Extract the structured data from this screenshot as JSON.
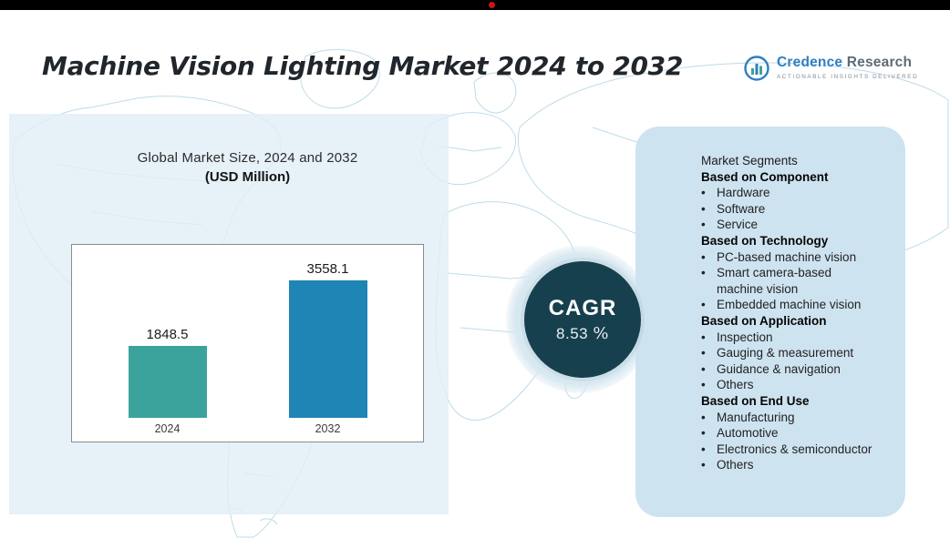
{
  "header": {
    "title": "Machine Vision Lighting Market 2024 to 2032",
    "logo": {
      "brand_first": "Credence",
      "brand_second": "Research",
      "tagline": "Actionable Insights Delivered"
    }
  },
  "chart_data": {
    "type": "bar",
    "title": "Global Market Size,  2024 and 2032",
    "subtitle": "(USD Million)",
    "categories": [
      "2024",
      "2032"
    ],
    "values": [
      1848.5,
      3558.1
    ],
    "value_labels": [
      "1848.5",
      "3558.1"
    ],
    "bar_colors": [
      "#3BA39C",
      "#1E85B4"
    ],
    "ylim": [
      0,
      4000
    ],
    "grid": false,
    "legend": "none"
  },
  "cagr_badge": {
    "label": "CAGR",
    "value": "8.53",
    "unit": "%"
  },
  "segments_panel": {
    "heading": "Market Segments",
    "groups": [
      {
        "title": "Based on Component",
        "items": [
          "Hardware",
          "Software",
          "Service"
        ]
      },
      {
        "title": "Based on Technology",
        "items": [
          "PC-based machine vision",
          "Smart camera-based machine vision",
          "Embedded machine vision"
        ]
      },
      {
        "title": "Based on Application",
        "items": [
          "Inspection",
          "Gauging & measurement",
          "Guidance & navigation",
          "Others"
        ]
      },
      {
        "title": "Based on End Use",
        "items": [
          "Manufacturing",
          "Automotive",
          "Electronics & semiconductor",
          "Others"
        ]
      }
    ]
  },
  "colors": {
    "cagr_circle": "#17404E",
    "left_panel": "#E1EEF7",
    "right_panel": "#CEE3F0",
    "map_stroke": "#B9D8E6",
    "bar_2024": "#3BA39C",
    "bar_2032": "#1E85B4",
    "top_bar": "#000000",
    "red_dot": "#CC1414"
  }
}
